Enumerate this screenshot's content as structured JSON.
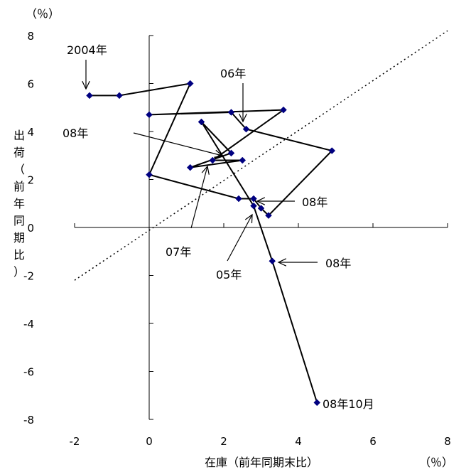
{
  "chart_data": {
    "type": "line",
    "xlabel": "在庫（前年同期末比）",
    "ylabel_chars": [
      "出",
      "荷",
      "（",
      "前",
      "年",
      "同",
      "期",
      "比",
      "）"
    ],
    "x_unit": "（％）",
    "y_unit": "（％）",
    "xlim": [
      -2,
      8
    ],
    "ylim": [
      -8,
      8
    ],
    "x_ticks": [
      -2,
      0,
      2,
      4,
      6,
      8
    ],
    "y_ticks": [
      8,
      6,
      4,
      2,
      0,
      -2,
      -4,
      -6,
      -8
    ],
    "grid": false,
    "reference_line": {
      "style": "dotted",
      "from": [
        -2,
        -2.2
      ],
      "to": [
        8,
        8.2
      ]
    },
    "series": [
      {
        "color": "#000080",
        "points": [
          {
            "x": -1.6,
            "y": 5.5
          },
          {
            "x": -0.8,
            "y": 5.5
          },
          {
            "x": 1.1,
            "y": 6.0
          },
          {
            "x": 0.0,
            "y": 2.2
          },
          {
            "x": 2.4,
            "y": 1.2
          },
          {
            "x": 2.8,
            "y": 1.2
          },
          {
            "x": 3.0,
            "y": 0.8
          },
          {
            "x": 3.2,
            "y": 0.5
          },
          {
            "x": 4.9,
            "y": 3.2
          },
          {
            "x": 2.6,
            "y": 4.1
          },
          {
            "x": 2.2,
            "y": 4.8
          },
          {
            "x": 0.0,
            "y": 4.7
          },
          {
            "x": 3.6,
            "y": 4.9
          },
          {
            "x": 1.7,
            "y": 2.8
          },
          {
            "x": 2.5,
            "y": 2.8
          },
          {
            "x": 1.1,
            "y": 2.5
          },
          {
            "x": 2.2,
            "y": 3.1
          },
          {
            "x": 1.4,
            "y": 4.4
          },
          {
            "x": 2.8,
            "y": 0.9
          },
          {
            "x": 3.3,
            "y": -1.4
          },
          {
            "x": 4.5,
            "y": -7.3
          }
        ]
      }
    ],
    "annotations": [
      {
        "text": "2004年",
        "x": -1.6,
        "y": 5.5
      },
      {
        "text": "06年",
        "x": 2.6,
        "y": 4.1
      },
      {
        "text": "08年",
        "x": 2.1,
        "y": 3.1
      },
      {
        "text": "07年",
        "x": 1.7,
        "y": 2.8
      },
      {
        "text": "05年",
        "x": 2.8,
        "y": 0.9
      },
      {
        "text": "08年",
        "x": 2.8,
        "y": 1.2
      },
      {
        "text": "08年",
        "x": 3.3,
        "y": -1.4
      },
      {
        "text": "08年10月",
        "x": 4.5,
        "y": -7.3
      }
    ]
  }
}
